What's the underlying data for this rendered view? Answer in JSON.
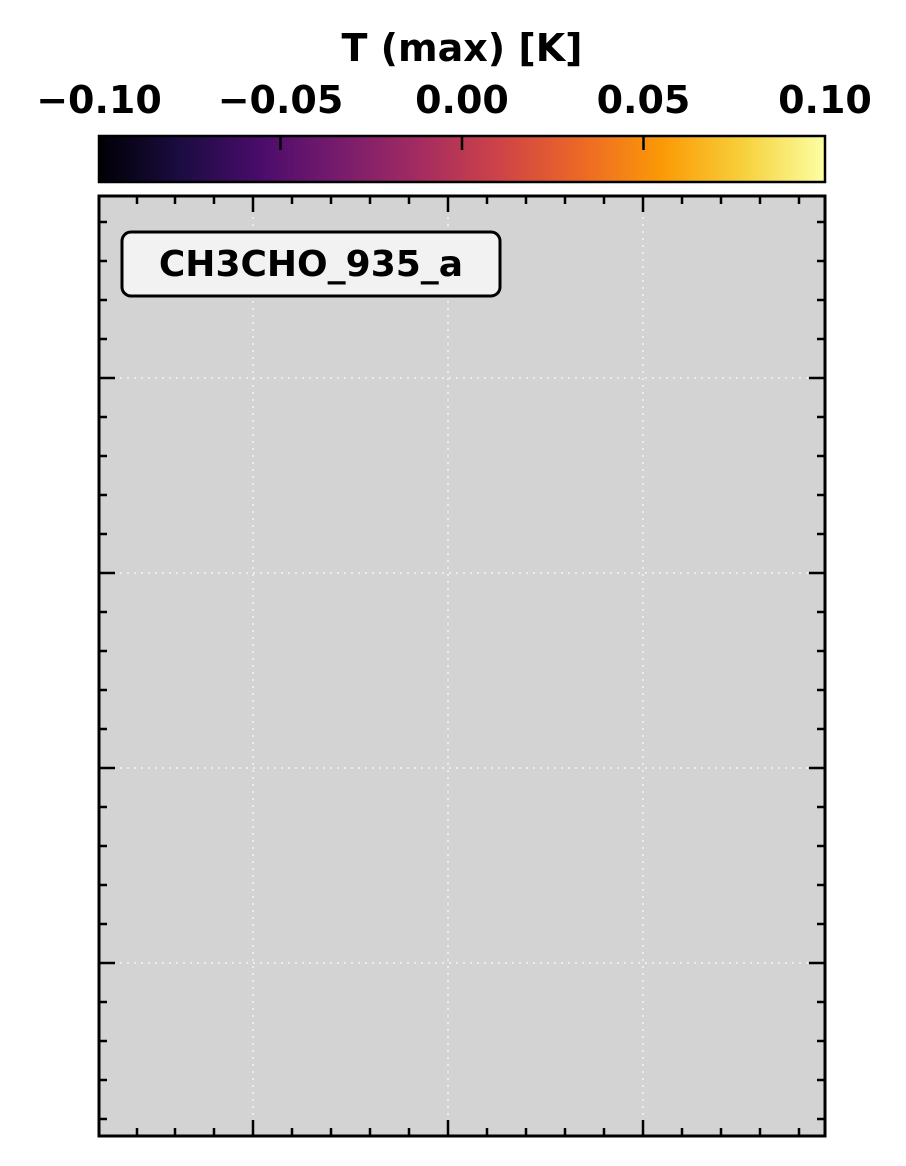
{
  "chart_data": {
    "type": "heatmap",
    "colorbar": {
      "label": "T (max) [K]",
      "range": [
        -0.1,
        0.1
      ],
      "ticks": [
        -0.1,
        -0.05,
        0.0,
        0.05,
        0.1
      ],
      "tick_labels": [
        "−0.10",
        "−0.05",
        "0.00",
        "0.05",
        "0.10"
      ],
      "colormap": "inferno",
      "stops": [
        "#000004",
        "#1b0c41",
        "#4a0c6b",
        "#781c6d",
        "#a52c60",
        "#cf4446",
        "#ed6925",
        "#fb9b06",
        "#f7d13d",
        "#fcffa4"
      ],
      "orientation": "horizontal",
      "position": "top"
    },
    "panel": {
      "label": "CH3CHO_935_a",
      "background": "#d3d3d3",
      "data": "none",
      "grid": true,
      "grid_style": "dotted",
      "axis_tick_labels_shown": false
    }
  }
}
